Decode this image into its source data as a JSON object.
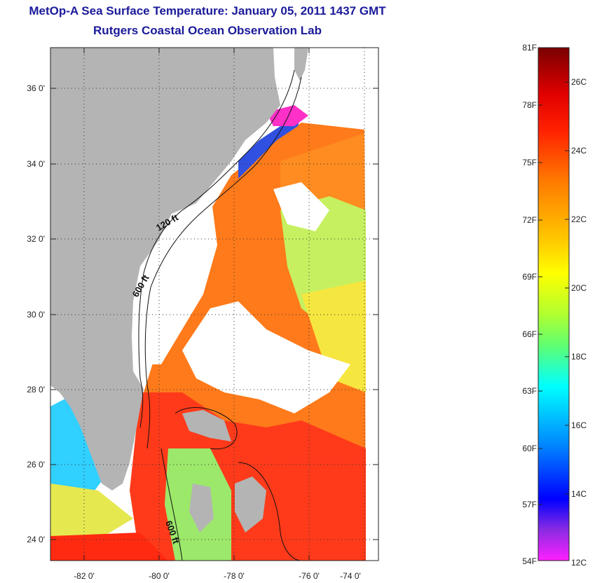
{
  "header": {
    "title": "MetOp-A Sea Surface Temperature:  January 05, 2011 1437 GMT",
    "subtitle": "Rutgers Coastal Ocean Observation Lab"
  },
  "map": {
    "lat_labels": [
      "36 0'",
      "34 0'",
      "32 0'",
      "30 0'",
      "28 0'",
      "26 0'",
      "24 0'"
    ],
    "lon_labels": [
      "-82 0'",
      "-80 0'",
      "-78 0'",
      "-76 0'",
      "-74 0'"
    ],
    "contours": [
      "120 ft",
      "600 ft",
      "600 ft"
    ],
    "land_color": "#b4b4b4",
    "cloud_color": "#ffffff"
  },
  "colorbar": {
    "fahrenheit_labels": [
      "81F",
      "78F",
      "75F",
      "72F",
      "69F",
      "66F",
      "63F",
      "60F",
      "57F",
      "54F"
    ],
    "celsius_labels": [
      "26C",
      "24C",
      "22C",
      "20C",
      "18C",
      "16C",
      "14C",
      "12C"
    ],
    "colors": [
      "#8b0000",
      "#ff0000",
      "#ff7f00",
      "#ffff00",
      "#7fff00",
      "#00ffff",
      "#0000ff",
      "#8a2be2",
      "#ff00ff"
    ]
  }
}
